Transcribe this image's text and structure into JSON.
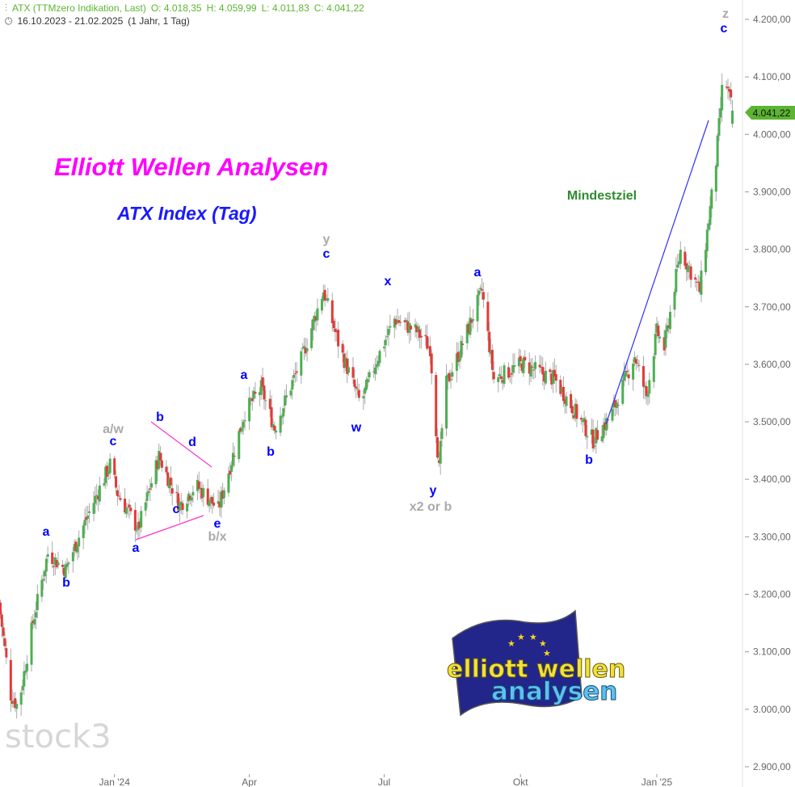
{
  "header": {
    "symbol": "ATX (TTMzero Indikation, Last)",
    "open": "O: 4.018,35",
    "high": "H: 4.059,99",
    "low": "L: 4.011,83",
    "close": "C: 4.041,22",
    "range": "16.10.2023 - 21.02.2025",
    "interval": "(1 Jahr, 1 Tag)",
    "icons": [
      "indicator-icon",
      "clock-icon"
    ]
  },
  "watermark": "stock3",
  "logo": {
    "line1": "elliott wellen",
    "line2": "analysen"
  },
  "colors": {
    "up": "#4caf50",
    "down": "#e53935",
    "wick": "#aaaaaa",
    "title": "#ff00ff",
    "subtitle": "#1a1aff",
    "wave_label": "#0000ff",
    "alt_label": "#aaaaaa",
    "target": "#2e8b2e",
    "price_tag": "#5cb531"
  },
  "chart_data": {
    "type": "candlestick",
    "title": "Elliott Wellen Analysen",
    "subtitle": "ATX Index (Tag)",
    "xlabel": "",
    "ylabel": "",
    "x_range": [
      "2023-10-16",
      "2025-02-21"
    ],
    "ylim": [
      2880,
      4230
    ],
    "y_ticks": [
      "4.200,00",
      "4.100,00",
      "4.000,00",
      "3.900,00",
      "3.800,00",
      "3.700,00",
      "3.600,00",
      "3.500,00",
      "3.400,00",
      "3.300,00",
      "3.200,00",
      "3.100,00",
      "3.000,00",
      "2.900,00"
    ],
    "y_tick_values": [
      4200,
      4100,
      4000,
      3900,
      3800,
      3700,
      3600,
      3500,
      3400,
      3300,
      3200,
      3100,
      3000,
      2900
    ],
    "x_ticks": [
      {
        "label": "Jan '24",
        "date": "2024-01-01"
      },
      {
        "label": "Apr",
        "date": "2024-04-01"
      },
      {
        "label": "Jul",
        "date": "2024-07-01"
      },
      {
        "label": "Okt",
        "date": "2024-10-01"
      },
      {
        "label": "Jan '25",
        "date": "2025-01-01"
      }
    ],
    "last_price": {
      "label": "4.041,22",
      "value": 4041.22
    },
    "last_candle": {
      "date": "2025-02-21",
      "open": 4018.35,
      "high": 4059.99,
      "low": 4011.83,
      "close": 4041.22
    },
    "close_path": [
      [
        "2023-10-16",
        3165
      ],
      [
        "2023-10-23",
        3025
      ],
      [
        "2023-10-28",
        3004
      ],
      [
        "2023-11-07",
        3152
      ],
      [
        "2023-11-17",
        3271
      ],
      [
        "2023-11-29",
        3243
      ],
      [
        "2023-12-10",
        3313
      ],
      [
        "2023-12-29",
        3426
      ],
      [
        "2024-01-03",
        3376
      ],
      [
        "2024-01-17",
        3313
      ],
      [
        "2024-01-31",
        3440
      ],
      [
        "2024-02-14",
        3355
      ],
      [
        "2024-02-25",
        3390
      ],
      [
        "2024-03-11",
        3348
      ],
      [
        "2024-03-29",
        3517
      ],
      [
        "2024-04-09",
        3559
      ],
      [
        "2024-04-18",
        3489
      ],
      [
        "2024-05-07",
        3615
      ],
      [
        "2024-05-21",
        3728
      ],
      [
        "2024-06-01",
        3629
      ],
      [
        "2024-06-15",
        3531
      ],
      [
        "2024-06-26",
        3608
      ],
      [
        "2024-07-08",
        3679
      ],
      [
        "2024-07-23",
        3657
      ],
      [
        "2024-08-01",
        3629
      ],
      [
        "2024-08-07",
        3417
      ],
      [
        "2024-08-11",
        3559
      ],
      [
        "2024-08-22",
        3629
      ],
      [
        "2024-09-05",
        3728
      ],
      [
        "2024-09-13",
        3574
      ],
      [
        "2024-10-02",
        3601
      ],
      [
        "2024-10-24",
        3574
      ],
      [
        "2024-11-07",
        3517
      ],
      [
        "2024-11-19",
        3468
      ],
      [
        "2024-12-01",
        3510
      ],
      [
        "2024-12-17",
        3615
      ],
      [
        "2024-12-25",
        3545
      ],
      [
        "2025-01-01",
        3657
      ],
      [
        "2025-01-06",
        3629
      ],
      [
        "2025-01-17",
        3798
      ],
      [
        "2025-01-30",
        3728
      ],
      [
        "2025-02-10",
        3953
      ],
      [
        "2025-02-15",
        4107
      ],
      [
        "2025-02-21",
        4041
      ]
    ],
    "annotations": [
      {
        "text": "z",
        "kind": "alt"
      },
      {
        "text": "c",
        "kind": "wave"
      },
      {
        "text": "Mindestziel",
        "kind": "target"
      },
      {
        "text": "y",
        "kind": "alt"
      },
      {
        "text": "c",
        "kind": "wave"
      },
      {
        "text": "x",
        "kind": "wave"
      },
      {
        "text": "a",
        "kind": "wave"
      },
      {
        "text": "w",
        "kind": "wave"
      },
      {
        "text": "y",
        "kind": "wave"
      },
      {
        "text": "x2 or b",
        "kind": "alt"
      },
      {
        "text": "b",
        "kind": "wave"
      },
      {
        "text": "a",
        "kind": "wave"
      },
      {
        "text": "b",
        "kind": "wave"
      },
      {
        "text": "a/w",
        "kind": "alt"
      },
      {
        "text": "c",
        "kind": "wave"
      },
      {
        "text": "b",
        "kind": "wave"
      },
      {
        "text": "d",
        "kind": "wave"
      },
      {
        "text": "c",
        "kind": "wave"
      },
      {
        "text": "a",
        "kind": "wave"
      },
      {
        "text": "e",
        "kind": "wave"
      },
      {
        "text": "b/x",
        "kind": "alt"
      },
      {
        "text": "a",
        "kind": "wave"
      },
      {
        "text": "b",
        "kind": "wave"
      }
    ]
  }
}
